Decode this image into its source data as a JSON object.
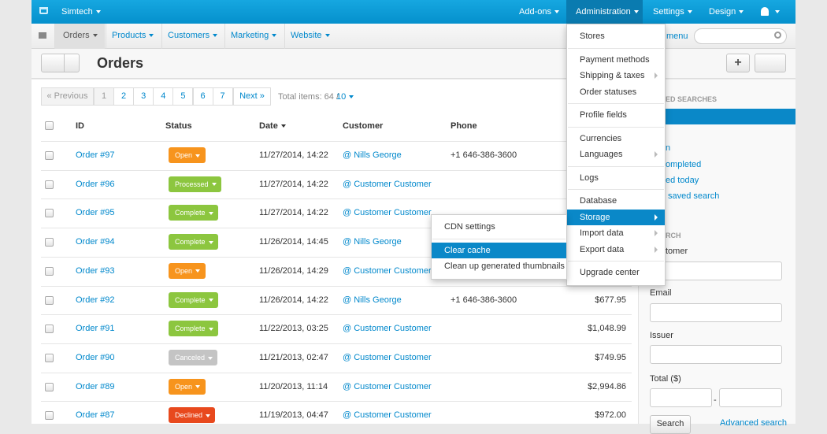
{
  "topbar": {
    "brand": "Simtech",
    "menus": [
      "Add-ons",
      "Administration",
      "Settings",
      "Design"
    ]
  },
  "navbar": {
    "tabs": [
      "Orders",
      "Products",
      "Customers",
      "Marketing",
      "Website"
    ],
    "menu_link": "menu"
  },
  "page": {
    "title": "Orders"
  },
  "pagination": {
    "previous": "« Previous",
    "pages": [
      "1",
      "2",
      "3",
      "4",
      "5",
      "6",
      "7"
    ],
    "next": "Next »",
    "total": "Total items: 64 /",
    "per_page": "10"
  },
  "table": {
    "headers": [
      "ID",
      "Status",
      "Date",
      "Customer",
      "Phone"
    ],
    "rows": [
      {
        "id": "Order #97",
        "status": "Open",
        "date": "11/27/2014, 14:22",
        "customer": "@ Nills George",
        "phone": "+1 646-386-3600"
      },
      {
        "id": "Order #96",
        "status": "Processed",
        "date": "11/27/2014, 14:22",
        "customer": "@ Customer Customer"
      },
      {
        "id": "Order #95",
        "status": "Complete",
        "date": "11/27/2014, 14:22",
        "customer": "@ Customer Customer"
      },
      {
        "id": "Order #94",
        "status": "Complete",
        "date": "11/26/2014, 14:45",
        "customer": "@ Nills George"
      },
      {
        "id": "Order #93",
        "status": "Open",
        "date": "11/26/2014, 14:29",
        "customer": "@ Customer Customer"
      },
      {
        "id": "Order #92",
        "status": "Complete",
        "date": "11/26/2014, 14:22",
        "customer": "@ Nills George",
        "phone": "+1 646-386-3600",
        "total": "$677.95"
      },
      {
        "id": "Order #91",
        "status": "Complete",
        "date": "11/22/2013, 03:25",
        "customer": "@ Customer Customer",
        "total": "$1,048.99"
      },
      {
        "id": "Order #90",
        "status": "Canceled",
        "date": "11/21/2013, 02:47",
        "customer": "@ Customer Customer",
        "total": "$749.95"
      },
      {
        "id": "Order #89",
        "status": "Open",
        "date": "11/20/2013, 11:14",
        "customer": "@ Customer Customer",
        "total": "$2,994.86"
      },
      {
        "id": "Order #87",
        "status": "Declined",
        "date": "11/19/2013, 04:47",
        "customer": "@ Customer Customer",
        "total": "$972.00"
      }
    ]
  },
  "sidebar": {
    "saved_searches": {
      "heading": "ED SEARCHES",
      "links": [
        "n",
        "ompleted",
        "ed today",
        "saved search"
      ]
    },
    "search": {
      "heading": "RCH",
      "fields": [
        "tomer",
        "Email",
        "Issuer",
        "Total ($)"
      ],
      "range_separator": "-",
      "button": "Search",
      "advanced": "Advanced search"
    }
  },
  "admin_menu": {
    "groups": [
      [
        "Stores"
      ],
      [
        "Payment methods",
        "Shipping & taxes",
        "Order statuses"
      ],
      [
        "Profile fields"
      ],
      [
        "Currencies",
        "Languages"
      ],
      [
        "Logs"
      ],
      [
        "Database",
        "Storage",
        "Import data",
        "Export data"
      ],
      [
        "Upgrade center"
      ]
    ]
  },
  "storage_menu": {
    "groups": [
      [
        "CDN settings"
      ],
      [
        "Clear cache",
        "Clean up generated thumbnails"
      ]
    ]
  }
}
